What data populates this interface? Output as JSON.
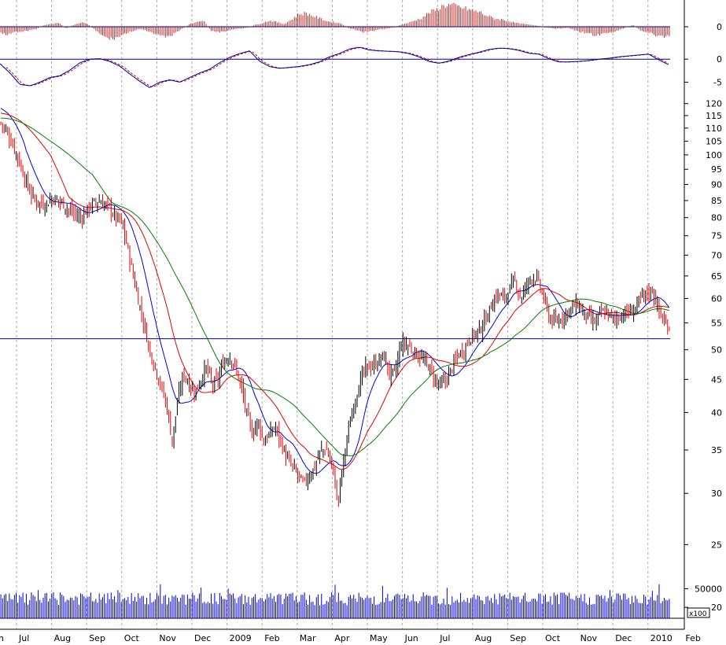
{
  "chart_data": {
    "type": "candlestick",
    "months": [
      "Jul",
      "Aug",
      "Sep",
      "Oct",
      "Nov",
      "Dec",
      "2009",
      "Feb",
      "Mar",
      "Apr",
      "May",
      "Jun",
      "Jul",
      "Aug",
      "Sep",
      "Oct",
      "Nov",
      "Dec",
      "2010",
      "Feb"
    ],
    "first_month_partial": "n",
    "price_axis": {
      "ticks": [
        20,
        25,
        30,
        35,
        40,
        45,
        50,
        55,
        60,
        65,
        70,
        75,
        80,
        85,
        90,
        95,
        100,
        105,
        110,
        115,
        120
      ],
      "range": [
        18.5,
        124
      ],
      "scale": "log",
      "support_line": 52
    },
    "price_path": [
      112,
      109,
      104,
      99,
      93,
      88,
      85,
      84,
      84,
      86,
      85,
      84,
      82,
      81,
      80,
      82,
      84,
      85,
      84,
      83,
      80,
      79,
      73,
      66,
      60,
      55,
      50,
      47,
      44,
      41,
      36,
      42,
      46,
      44,
      43,
      45,
      47,
      44,
      45,
      48,
      49,
      47,
      44,
      40,
      37,
      39,
      36,
      37,
      38,
      36,
      34,
      33,
      32,
      31,
      32,
      33,
      35,
      35,
      33,
      29,
      34,
      38,
      42,
      45,
      47,
      47,
      48,
      49,
      46,
      46,
      51,
      51,
      50,
      49,
      48,
      47,
      45,
      44,
      45,
      47,
      49,
      50,
      52,
      53,
      54,
      56,
      59,
      61,
      60,
      62,
      64,
      60,
      63,
      65,
      64,
      60,
      56,
      55,
      56,
      57,
      58,
      59,
      57,
      56,
      55,
      57,
      57,
      56,
      56,
      57,
      57,
      58,
      60,
      61,
      62,
      58,
      55,
      54
    ],
    "oscillator": {
      "ticks": [
        0,
        -5
      ],
      "range": [
        -8,
        2.6
      ],
      "line_path": [
        -1,
        -3,
        -5.5,
        -5.8,
        -5,
        -4,
        -3.6,
        -2.4,
        -0.8,
        0,
        0.1,
        -0.5,
        -1.5,
        -3.2,
        -4.8,
        -6.2,
        -5,
        -4.5,
        -5,
        -4,
        -3,
        -2.2,
        -0.8,
        0.4,
        1.2,
        1.8,
        -0.4,
        -1.6,
        -2,
        -1.8,
        -1.6,
        -1.2,
        -0.6,
        0.5,
        1.2,
        2.2,
        2.6,
        2,
        1.8,
        1.7,
        1.6,
        1.2,
        0.5,
        -0.5,
        -0.9,
        -0.4,
        0.4,
        1,
        1.5,
        2.1,
        2.4,
        2.3,
        1.9,
        1.3,
        1.1,
        0.1,
        -0.6,
        -0.6,
        -0.5,
        -0.3,
        0,
        0.2,
        0.5,
        0.7,
        0.9,
        1.1,
        -0.1,
        -1.2
      ]
    },
    "momentum": {
      "ticks": [
        0
      ],
      "range": [
        -16,
        28
      ],
      "bar_path": [
        -7,
        -9,
        -6,
        -5,
        -4,
        -2,
        2,
        3,
        4,
        -2,
        2,
        5,
        3,
        -4,
        -10,
        -14,
        -12,
        -8,
        -5,
        -3,
        -4,
        -8,
        -10,
        -12,
        -7,
        -2,
        3,
        5,
        6,
        -5,
        -6,
        -5,
        -3,
        -2,
        -1,
        2,
        4,
        7,
        5,
        3,
        8,
        14,
        15,
        12,
        9,
        6,
        5,
        3,
        -2,
        -4,
        -6,
        -5,
        -3,
        -2,
        -1,
        2,
        4,
        7,
        10,
        16,
        19,
        24,
        24,
        22,
        20,
        18,
        16,
        12,
        9,
        8,
        6,
        4,
        3,
        2,
        1,
        -1,
        -2,
        -2,
        -1,
        -4,
        -6,
        -8,
        -10,
        -8,
        -6,
        -4,
        -1,
        2,
        -4,
        -6,
        -9,
        -12,
        -10
      ]
    },
    "volume_axis": {
      "tick": 50000,
      "multiplier_label": "x100",
      "range": [
        0,
        64000
      ]
    },
    "colors": {
      "up_candle": "#000000",
      "down_candle": "#e00000",
      "ma_fast": "#0000dd",
      "ma_mid": "#e00000",
      "ma_slow": "#008000",
      "oscillator_line": "#0000aa",
      "signal_line": "#cc0000",
      "momentum_bars": "#c03030",
      "volume_bars": "#0000cc",
      "gridline": "#aaaaaa",
      "zero_line": "#000080"
    }
  }
}
